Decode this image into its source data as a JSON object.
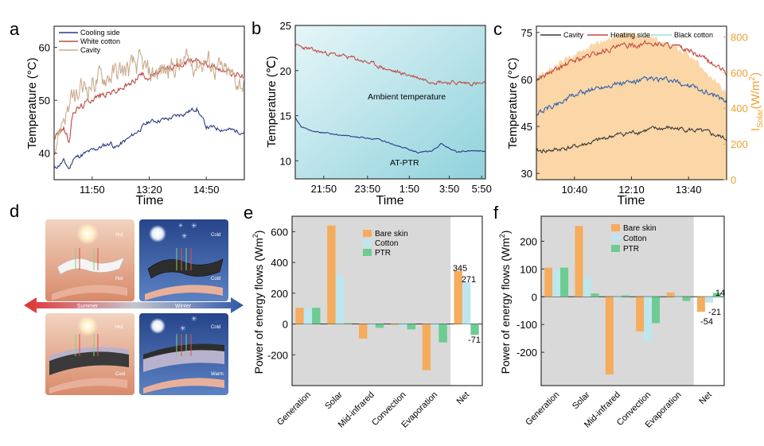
{
  "colors": {
    "navy": "#2b3a84",
    "red": "#c24a43",
    "tan": "#c9ac8f",
    "dark": "#3a3a3a",
    "blue": "#2f62ad",
    "orange": "#f5ac5c",
    "lightblue": "#bde6ee",
    "green": "#6ccc92",
    "grayband": "#d9d9d9",
    "solarfill": "#fbd6a6",
    "cyan": "#9adbe3"
  },
  "chart_data": [
    {
      "panel": "a",
      "type": "line",
      "xlabel": "Time",
      "ylabel": "Temperature (°C)",
      "xlim": [
        0,
        100
      ],
      "ylim": [
        35,
        64
      ],
      "xticks": [
        {
          "v": 20,
          "label": "11:50"
        },
        {
          "v": 50,
          "label": "13:20"
        },
        {
          "v": 80,
          "label": "14:50"
        }
      ],
      "yticks": [
        40,
        50,
        60
      ],
      "series": [
        {
          "name": "Cooling side",
          "color": "#2b3a84",
          "noise": 0.35,
          "x": [
            0,
            5,
            8,
            10,
            20,
            30,
            32,
            40,
            50,
            60,
            68,
            75,
            80,
            90,
            100
          ],
          "y": [
            37,
            38.5,
            37,
            39,
            40.5,
            42,
            41,
            43,
            46,
            46.5,
            47.5,
            48.5,
            45,
            44.5,
            44
          ]
        },
        {
          "name": "White cotton",
          "color": "#c24a43",
          "noise": 0.5,
          "x": [
            0,
            5,
            8,
            10,
            15,
            20,
            30,
            40,
            45,
            50,
            60,
            70,
            75,
            80,
            90,
            100
          ],
          "y": [
            43,
            45,
            42,
            48,
            49,
            50.5,
            51.5,
            53,
            55,
            54.5,
            56,
            57,
            58,
            57,
            55.5,
            54.5
          ]
        },
        {
          "name": "Cavity",
          "color": "#c9ac8f",
          "noise": 1.8,
          "x": [
            0,
            5,
            10,
            20,
            30,
            40,
            45,
            50,
            60,
            70,
            80,
            90,
            100
          ],
          "y": [
            41,
            47,
            50,
            53.5,
            55,
            56,
            57,
            55,
            56,
            57,
            57.5,
            55,
            53
          ]
        }
      ]
    },
    {
      "panel": "b",
      "type": "line",
      "xlabel": "Time",
      "ylabel": "Temperature (℃)",
      "xlim": [
        0,
        100
      ],
      "ylim": [
        8,
        25
      ],
      "xticks": [
        {
          "v": 15,
          "label": "21:50"
        },
        {
          "v": 38,
          "label": "23:50"
        },
        {
          "v": 60,
          "label": "1:50"
        },
        {
          "v": 81,
          "label": "3:50"
        },
        {
          "v": 98,
          "label": "5:50"
        }
      ],
      "yticks": [
        10,
        15,
        20,
        25
      ],
      "series": [
        {
          "name": "Ambient temperature",
          "color": "#c24a43",
          "noise": 0.18,
          "x": [
            0,
            10,
            20,
            30,
            40,
            50,
            60,
            70,
            80,
            90,
            100
          ],
          "y": [
            22.8,
            22.2,
            21.8,
            21.4,
            20.8,
            20.0,
            19.5,
            18.9,
            18.7,
            18.6,
            18.5
          ]
        },
        {
          "name": "AT-PTR",
          "color": "#2b3a84",
          "noise": 0.06,
          "x": [
            0,
            3,
            8,
            15,
            30,
            45,
            55,
            65,
            72,
            77,
            80,
            85,
            95,
            100
          ],
          "y": [
            14.8,
            13.8,
            13.4,
            13.1,
            12.7,
            12.3,
            11.6,
            10.9,
            11.1,
            11.9,
            11.5,
            11.0,
            11.1,
            11.0
          ]
        }
      ],
      "annotations": [
        "Ambient temperature",
        "AT-PTR"
      ]
    },
    {
      "panel": "c",
      "type": "line",
      "xlabel": "Time",
      "ylabel": "Temperature (°C)",
      "y2label_main": "I",
      "y2label_sub": "Solar",
      "y2label_unit": "(W/m",
      "y2label_sup": "2",
      "y2label_end": ")",
      "xlim": [
        0,
        100
      ],
      "ylim": [
        28,
        77
      ],
      "y2lim": [
        0,
        860
      ],
      "xticks": [
        {
          "v": 20,
          "label": "10:40"
        },
        {
          "v": 50,
          "label": "12:10"
        },
        {
          "v": 80,
          "label": "13:40"
        }
      ],
      "yticks": [
        30,
        45,
        60,
        75
      ],
      "y2ticks": [
        0,
        200,
        400,
        600,
        800
      ],
      "solar": {
        "x": [
          0,
          10,
          20,
          30,
          40,
          50,
          60,
          65,
          70,
          80,
          90,
          100
        ],
        "y": [
          560,
          640,
          700,
          760,
          800,
          820,
          800,
          770,
          760,
          700,
          600,
          480
        ]
      },
      "series": [
        {
          "name": "Cavity",
          "color": "#3a3a3a",
          "noise": 0.6,
          "x": [
            0,
            10,
            20,
            30,
            40,
            50,
            60,
            70,
            80,
            90,
            100
          ],
          "y": [
            37,
            37.5,
            38.5,
            40,
            42,
            43,
            44,
            44.5,
            44,
            43,
            41
          ]
        },
        {
          "name": "Heating side",
          "color": "#c24a43",
          "noise": 0.7,
          "x": [
            0,
            10,
            20,
            30,
            40,
            50,
            60,
            70,
            80,
            90,
            100
          ],
          "y": [
            60,
            63,
            66,
            68,
            70,
            71,
            71.5,
            71,
            69,
            66,
            62
          ]
        },
        {
          "name": "Black cotton",
          "color": "#2f62ad",
          "noise": 0.7,
          "x": [
            0,
            10,
            20,
            30,
            40,
            50,
            60,
            70,
            80,
            90,
            100
          ],
          "y": [
            49,
            52,
            55,
            57,
            58.5,
            59,
            60,
            59.5,
            58,
            56,
            53
          ]
        }
      ],
      "legend_names": [
        "Cavity",
        "Heating side",
        "Black cotton"
      ]
    },
    {
      "panel": "e",
      "type": "bar",
      "ylabel": "Power of energy  flows (Wm",
      "ylabel_sup": "2",
      "ylabel_end": ")",
      "ylim": [
        -400,
        700
      ],
      "yticks": [
        -200,
        0,
        200,
        400,
        600
      ],
      "categories": [
        "Generation",
        "Solar",
        "Mid-infrared",
        "Convection",
        "Evaporation",
        "Net"
      ],
      "series": [
        {
          "name": "Bare skin",
          "color": "#f5ac5c",
          "values": [
            105,
            640,
            -95,
            -5,
            -300,
            345
          ]
        },
        {
          "name": "Cotton",
          "color": "#bde6ee",
          "values": [
            100,
            315,
            -10,
            -15,
            -20,
            271
          ]
        },
        {
          "name": "PTR",
          "color": "#6ccc92",
          "values": [
            105,
            5,
            -25,
            -35,
            -120,
            -71
          ]
        }
      ],
      "data_labels": [
        "345",
        "271",
        "-71"
      ]
    },
    {
      "panel": "f",
      "type": "bar",
      "ylabel": "Power of energy  flows (Wm",
      "ylabel_sup": "2",
      "ylabel_end": ")",
      "ylim": [
        -320,
        290
      ],
      "yticks": [
        -200,
        -100,
        0,
        100,
        200
      ],
      "categories": [
        "Generation",
        "Solar",
        "Mid-infrared",
        "Convection",
        "Evaporation",
        "Net"
      ],
      "series": [
        {
          "name": "Bare skin",
          "color": "#f5ac5c",
          "values": [
            105,
            255,
            -280,
            -125,
            15,
            -54
          ]
        },
        {
          "name": "Cotton",
          "color": "#bde6ee",
          "values": [
            100,
            70,
            -5,
            -160,
            -5,
            -21
          ]
        },
        {
          "name": "PTR",
          "color": "#6ccc92",
          "values": [
            105,
            12,
            5,
            -95,
            -15,
            14
          ]
        }
      ],
      "data_labels": [
        "14",
        "-21",
        "-54"
      ]
    }
  ],
  "panel_labels": [
    "a",
    "b",
    "c",
    "d",
    "e",
    "f"
  ],
  "diagram": {
    "season_summer": "Summer",
    "season_winter": "Winter",
    "tl": [
      "Hot",
      "Hot"
    ],
    "tr": [
      "Cold",
      "Cold"
    ],
    "bl": [
      "Hot",
      "Cool"
    ],
    "br": [
      "Cold",
      "Warm"
    ]
  }
}
